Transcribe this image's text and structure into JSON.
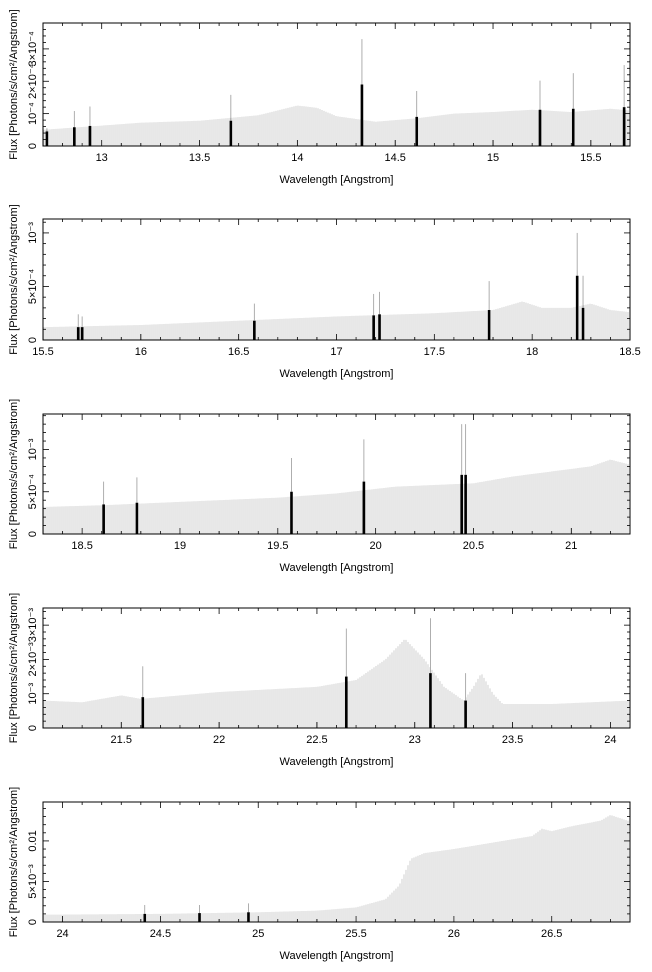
{
  "chart_data": [
    {
      "type": "bar",
      "xlabel": "Wavelength [Angstrom]",
      "ylabel": "Flux [Photons/s/cm²/Angstrom]",
      "xlim": [
        12.7,
        15.7
      ],
      "ylim": [
        0,
        0.00038
      ],
      "xticks": [
        13,
        13.5,
        14,
        14.5,
        15,
        15.5
      ],
      "xtick_labels": [
        "13",
        "13.5",
        "14",
        "14.5",
        "15",
        "15.5"
      ],
      "yticks": [
        0,
        0.0001,
        0.0002,
        0.0003
      ],
      "ytick_labels": [
        "0",
        "10⁻⁴",
        "2×10⁻⁴",
        "3×10⁻⁴"
      ],
      "continuum": [
        [
          12.7,
          5e-05
        ],
        [
          13.0,
          6.3e-05
        ],
        [
          13.2,
          7.2e-05
        ],
        [
          13.5,
          7.8e-05
        ],
        [
          13.8,
          9.5e-05
        ],
        [
          14.0,
          0.000125
        ],
        [
          14.1,
          0.000118
        ],
        [
          14.2,
          9.2e-05
        ],
        [
          14.4,
          7.5e-05
        ],
        [
          14.6,
          8.5e-05
        ],
        [
          14.8,
          0.0001
        ],
        [
          15.0,
          0.000105
        ],
        [
          15.2,
          0.000112
        ],
        [
          15.4,
          0.000105
        ],
        [
          15.6,
          0.000115
        ],
        [
          15.7,
          0.00011
        ]
      ],
      "lines": [
        {
          "x": 12.72,
          "y": 4.5e-05,
          "err": 1e-05
        },
        {
          "x": 12.86,
          "y": 5.8e-05,
          "err": 5e-05
        },
        {
          "x": 12.94,
          "y": 6.2e-05,
          "err": 6e-05
        },
        {
          "x": 13.66,
          "y": 7.8e-05,
          "err": 8e-05
        },
        {
          "x": 14.33,
          "y": 0.00019,
          "err": 0.00014
        },
        {
          "x": 14.61,
          "y": 9e-05,
          "err": 8e-05
        },
        {
          "x": 15.24,
          "y": 0.000112,
          "err": 9e-05
        },
        {
          "x": 15.41,
          "y": 0.000115,
          "err": 0.00011
        },
        {
          "x": 15.67,
          "y": 0.00012,
          "err": 0.00013
        }
      ]
    },
    {
      "type": "bar",
      "xlabel": "Wavelength [Angstrom]",
      "ylabel": "Flux [Photons/s/cm²/Angstrom]",
      "xlim": [
        15.5,
        18.5
      ],
      "ylim": [
        0,
        0.00113
      ],
      "xticks": [
        15.5,
        16,
        16.5,
        17,
        17.5,
        18,
        18.5
      ],
      "xtick_labels": [
        "15.5",
        "16",
        "16.5",
        "17",
        "17.5",
        "18",
        "18.5"
      ],
      "yticks": [
        0,
        0.0005,
        0.001
      ],
      "ytick_labels": [
        "0",
        "5×10⁻⁴",
        "10⁻³"
      ],
      "continuum": [
        [
          15.5,
          0.00012
        ],
        [
          16.0,
          0.00014
        ],
        [
          16.5,
          0.00018
        ],
        [
          17.0,
          0.00022
        ],
        [
          17.5,
          0.00025
        ],
        [
          17.8,
          0.00028
        ],
        [
          17.95,
          0.00036
        ],
        [
          18.05,
          0.0003
        ],
        [
          18.2,
          0.0003
        ],
        [
          18.3,
          0.00034
        ],
        [
          18.4,
          0.00028
        ],
        [
          18.5,
          0.00026
        ]
      ],
      "lines": [
        {
          "x": 15.68,
          "y": 0.00012,
          "err": 0.00012
        },
        {
          "x": 15.7,
          "y": 0.00012,
          "err": 0.0001
        },
        {
          "x": 16.58,
          "y": 0.00018,
          "err": 0.00016
        },
        {
          "x": 17.19,
          "y": 0.00023,
          "err": 0.0002
        },
        {
          "x": 17.22,
          "y": 0.00024,
          "err": 0.00021
        },
        {
          "x": 17.78,
          "y": 0.00028,
          "err": 0.00027
        },
        {
          "x": 18.23,
          "y": 0.0006,
          "err": 0.0004
        },
        {
          "x": 18.26,
          "y": 0.0003,
          "err": 0.0003
        }
      ]
    },
    {
      "type": "bar",
      "xlabel": "Wavelength [Angstrom]",
      "ylabel": "Flux [Photons/s/cm²/Angstrom]",
      "xlim": [
        18.3,
        21.3
      ],
      "ylim": [
        0,
        0.00142
      ],
      "xticks": [
        18.5,
        19,
        19.5,
        20,
        20.5,
        21
      ],
      "xtick_labels": [
        "18.5",
        "19",
        "19.5",
        "20",
        "20.5",
        "21"
      ],
      "yticks": [
        0,
        0.0005,
        0.001
      ],
      "ytick_labels": [
        "0",
        "5×10⁻⁴",
        "10⁻³"
      ],
      "continuum": [
        [
          18.3,
          0.00032
        ],
        [
          18.6,
          0.00034
        ],
        [
          19.0,
          0.00038
        ],
        [
          19.5,
          0.00043
        ],
        [
          19.8,
          0.00048
        ],
        [
          20.1,
          0.00056
        ],
        [
          20.5,
          0.0006
        ],
        [
          20.7,
          0.00068
        ],
        [
          20.9,
          0.00074
        ],
        [
          21.1,
          0.0008
        ],
        [
          21.2,
          0.00088
        ],
        [
          21.3,
          0.00082
        ]
      ],
      "lines": [
        {
          "x": 18.61,
          "y": 0.00035,
          "err": 0.00027
        },
        {
          "x": 18.78,
          "y": 0.00037,
          "err": 0.0003
        },
        {
          "x": 19.57,
          "y": 0.0005,
          "err": 0.0004
        },
        {
          "x": 19.94,
          "y": 0.00062,
          "err": 0.0005
        },
        {
          "x": 20.44,
          "y": 0.0007,
          "err": 0.0006
        },
        {
          "x": 20.46,
          "y": 0.0007,
          "err": 0.0006
        }
      ]
    },
    {
      "type": "bar",
      "xlabel": "Wavelength [Angstrom]",
      "ylabel": "Flux [Photons/s/cm²/Angstrom]",
      "xlim": [
        21.1,
        24.1
      ],
      "ylim": [
        0,
        0.0035
      ],
      "xticks": [
        21.5,
        22,
        22.5,
        23,
        23.5,
        24
      ],
      "xtick_labels": [
        "21.5",
        "22",
        "22.5",
        "23",
        "23.5",
        "24"
      ],
      "yticks": [
        0,
        0.001,
        0.002,
        0.003
      ],
      "ytick_labels": [
        "0",
        "10⁻³",
        "2×10⁻³",
        "3×10⁻³"
      ],
      "continuum": [
        [
          21.1,
          0.0008
        ],
        [
          21.3,
          0.00075
        ],
        [
          21.5,
          0.00095
        ],
        [
          21.6,
          0.00085
        ],
        [
          22.0,
          0.00105
        ],
        [
          22.5,
          0.0012
        ],
        [
          22.7,
          0.0014
        ],
        [
          22.85,
          0.002
        ],
        [
          22.95,
          0.0026
        ],
        [
          23.05,
          0.002
        ],
        [
          23.15,
          0.0012
        ],
        [
          23.25,
          0.0008
        ],
        [
          23.3,
          0.0012
        ],
        [
          23.34,
          0.0016
        ],
        [
          23.4,
          0.001
        ],
        [
          23.45,
          0.0007
        ],
        [
          23.7,
          0.0007
        ],
        [
          24.1,
          0.0008
        ]
      ],
      "lines": [
        {
          "x": 21.61,
          "y": 0.0009,
          "err": 0.0009
        },
        {
          "x": 22.65,
          "y": 0.0015,
          "err": 0.0014
        },
        {
          "x": 23.08,
          "y": 0.0016,
          "err": 0.0016
        },
        {
          "x": 23.26,
          "y": 0.0008,
          "err": 0.0008
        }
      ]
    },
    {
      "type": "bar",
      "xlabel": "Wavelength [Angstrom]",
      "ylabel": "Flux [Photons/s/cm²/Angstrom]",
      "xlim": [
        23.9,
        26.9
      ],
      "ylim": [
        0,
        0.0148
      ],
      "xticks": [
        24,
        24.5,
        25,
        25.5,
        26,
        26.5
      ],
      "xtick_labels": [
        "24",
        "24.5",
        "25",
        "25.5",
        "26",
        "26.5"
      ],
      "yticks": [
        0,
        0.005,
        0.01
      ],
      "ytick_labels": [
        "0",
        "5×10⁻³",
        "0.01"
      ],
      "continuum": [
        [
          23.9,
          0.0009
        ],
        [
          24.5,
          0.001
        ],
        [
          25.0,
          0.0012
        ],
        [
          25.3,
          0.0014
        ],
        [
          25.5,
          0.0018
        ],
        [
          25.65,
          0.0028
        ],
        [
          25.72,
          0.0045
        ],
        [
          25.78,
          0.0078
        ],
        [
          25.85,
          0.0085
        ],
        [
          26.0,
          0.009
        ],
        [
          26.2,
          0.0098
        ],
        [
          26.4,
          0.0106
        ],
        [
          26.45,
          0.0115
        ],
        [
          26.5,
          0.0112
        ],
        [
          26.6,
          0.0118
        ],
        [
          26.75,
          0.0125
        ],
        [
          26.8,
          0.0132
        ],
        [
          26.9,
          0.0124
        ]
      ],
      "lines": [
        {
          "x": 24.42,
          "y": 0.001,
          "err": 0.0011
        },
        {
          "x": 24.7,
          "y": 0.0011,
          "err": 0.001
        },
        {
          "x": 24.95,
          "y": 0.0012,
          "err": 0.0011
        }
      ]
    }
  ]
}
